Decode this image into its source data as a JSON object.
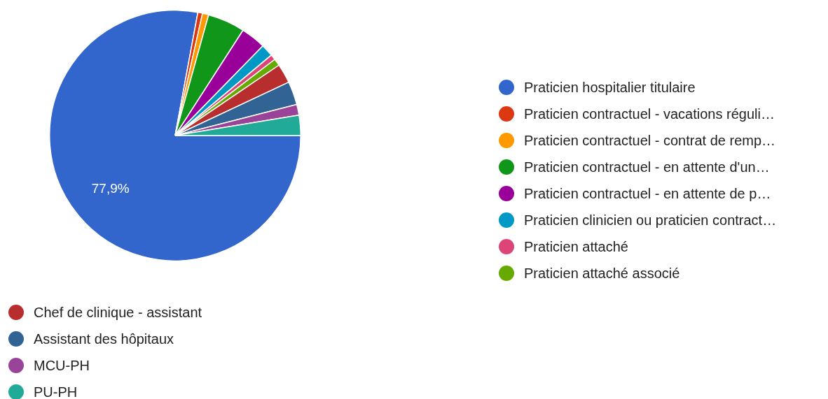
{
  "chart_data": {
    "type": "pie",
    "categories": [
      "Praticien hospitalier titulaire",
      "Praticien contractuel - vacations réguli…",
      "Praticien contractuel - contrat de remp…",
      "Praticien contractuel - en attente d'un…",
      "Praticien contractuel - en attente de p…",
      "Praticien clinicien ou praticien contract…",
      "Praticien attaché",
      "Praticien attaché associé",
      "Chef de clinique - assistant",
      "Assistant des hôpitaux",
      "MCU-PH",
      "PU-PH"
    ],
    "values": [
      77.9,
      0.6,
      0.8,
      4.8,
      3.2,
      1.6,
      0.7,
      0.9,
      2.5,
      3.0,
      1.4,
      2.6
    ],
    "colors": [
      "#3366cc",
      "#dc3912",
      "#ff9900",
      "#109618",
      "#990099",
      "#0099c6",
      "#dd4477",
      "#66aa00",
      "#b82e2e",
      "#316395",
      "#994499",
      "#22aa99"
    ],
    "value_labels": [
      "77,9%",
      null,
      null,
      null,
      null,
      null,
      null,
      null,
      null,
      null,
      null,
      null
    ],
    "legend": "right"
  }
}
